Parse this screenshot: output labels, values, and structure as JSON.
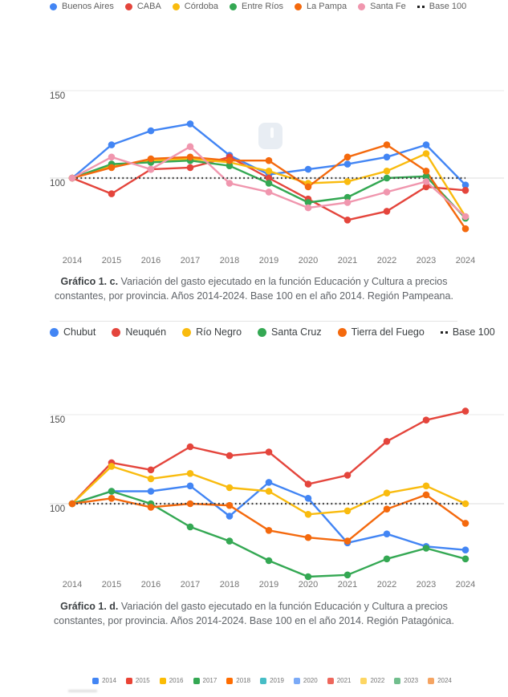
{
  "charts": [
    {
      "name": "pampeana",
      "legend": [
        {
          "label": "Buenos Aires",
          "color": "#4285F4"
        },
        {
          "label": "CABA",
          "color": "#E4453C"
        },
        {
          "label": "Córdoba",
          "color": "#F9BB0E"
        },
        {
          "label": "Entre Ríos",
          "color": "#34A853"
        },
        {
          "label": "La Pampa",
          "color": "#F4690D"
        },
        {
          "label": "Santa Fe",
          "color": "#F096AE"
        },
        {
          "label": "Base 100",
          "style": "dotted",
          "color": "#212121"
        }
      ],
      "caption_bold": "Gráfico 1. c.",
      "caption_text": "Variación del gasto ejecutado en la función Educación y Cultura a precios constantes, por provincia. Años 2014-2024. Base 100 en el año 2014. Región Pampeana."
    },
    {
      "name": "patagonica",
      "legend": [
        {
          "label": "Chubut",
          "color": "#4285F4"
        },
        {
          "label": "Neuquén",
          "color": "#E4453C"
        },
        {
          "label": "Río Negro",
          "color": "#F9BB0E"
        },
        {
          "label": "Santa Cruz",
          "color": "#34A853"
        },
        {
          "label": "Tierra del Fuego",
          "color": "#F4690D"
        },
        {
          "label": "Base 100",
          "style": "dotted",
          "color": "#212121"
        }
      ],
      "caption_bold": "Gráfico 1. d.",
      "caption_text": "Variación del gasto ejecutado en la función Educación y Cultura a precios constantes, por provincia. Años 2014-2024. Base 100 en el año 2014. Región Patagónica."
    }
  ],
  "chart_data": [
    {
      "type": "line",
      "title": "Gráfico 1. c. Variación del gasto ejecutado en la función Educación y Cultura a precios constantes, por provincia. Años 2014-2024. Base 100 en el año 2014. Región Pampeana.",
      "categories": [
        "2014",
        "2015",
        "2016",
        "2017",
        "2018",
        "2019",
        "2020",
        "2021",
        "2022",
        "2023",
        "2024"
      ],
      "series": [
        {
          "name": "Buenos Aires",
          "color": "#4285F4",
          "values": [
            100,
            119,
            127,
            131,
            113,
            102,
            105,
            108,
            112,
            119,
            96
          ]
        },
        {
          "name": "CABA",
          "color": "#E4453C",
          "values": [
            100,
            91,
            105,
            106,
            112,
            100,
            88,
            76,
            81,
            95,
            93
          ]
        },
        {
          "name": "Córdoba",
          "color": "#F9BB0E",
          "values": [
            100,
            107,
            110,
            111,
            109,
            104,
            97,
            98,
            104,
            114,
            78
          ]
        },
        {
          "name": "Entre Ríos",
          "color": "#34A853",
          "values": [
            100,
            108,
            109,
            110,
            107,
            97,
            86,
            89,
            100,
            101,
            77
          ]
        },
        {
          "name": "La Pampa",
          "color": "#F4690D",
          "values": [
            100,
            106,
            111,
            112,
            110,
            110,
            95,
            112,
            119,
            104,
            71
          ]
        },
        {
          "name": "Santa Fe",
          "color": "#F096AE",
          "values": [
            100,
            112,
            105,
            118,
            97,
            92,
            83,
            86,
            92,
            98,
            78
          ]
        }
      ],
      "base_line": {
        "label": "Base 100",
        "value": 100,
        "style": "dotted",
        "color": "#3d3d3d"
      },
      "y_ticks": [
        150,
        100
      ],
      "ylim": [
        58,
        153
      ],
      "grid": "horizontal-only",
      "legend_position": "top"
    },
    {
      "type": "line",
      "title": "Gráfico 1. d. Variación del gasto ejecutado en la función Educación y Cultura a precios constantes, por provincia. Años 2014-2024. Base 100 en el año 2014. Región Patagónica.",
      "categories": [
        "2014",
        "2015",
        "2016",
        "2017",
        "2018",
        "2019",
        "2020",
        "2021",
        "2022",
        "2023",
        "2024"
      ],
      "series": [
        {
          "name": "Chubut",
          "color": "#4285F4",
          "values": [
            100,
            107,
            107,
            110,
            93,
            112,
            103,
            78,
            83,
            76,
            74
          ]
        },
        {
          "name": "Neuquén",
          "color": "#E4453C",
          "values": [
            100,
            123,
            119,
            132,
            127,
            129,
            111,
            116,
            135,
            147,
            152
          ]
        },
        {
          "name": "Río Negro",
          "color": "#F9BB0E",
          "values": [
            100,
            121,
            114,
            117,
            109,
            107,
            94,
            96,
            106,
            110,
            100
          ]
        },
        {
          "name": "Santa Cruz",
          "color": "#34A853",
          "values": [
            100,
            107,
            100,
            87,
            79,
            68,
            59,
            60,
            69,
            75,
            69
          ]
        },
        {
          "name": "Tierra del Fuego",
          "color": "#F4690D",
          "values": [
            100,
            103,
            98,
            100,
            99,
            85,
            81,
            79,
            97,
            105,
            89
          ]
        }
      ],
      "base_line": {
        "label": "Base 100",
        "value": 100,
        "style": "dotted",
        "color": "#3d3d3d"
      },
      "y_ticks": [
        150,
        100
      ],
      "ylim": [
        48,
        156
      ],
      "grid": "horizontal-only",
      "legend_position": "top"
    }
  ],
  "year_legend": [
    {
      "label": "2014",
      "color": "#4285F4"
    },
    {
      "label": "2015",
      "color": "#EA4335"
    },
    {
      "label": "2016",
      "color": "#FBBC04"
    },
    {
      "label": "2017",
      "color": "#34A853"
    },
    {
      "label": "2018",
      "color": "#FF6D01"
    },
    {
      "label": "2019",
      "color": "#46BDC6"
    },
    {
      "label": "2020",
      "color": "#7BAAF7"
    },
    {
      "label": "2021",
      "color": "#EE675C"
    },
    {
      "label": "2022",
      "color": "#FDD663"
    },
    {
      "label": "2023",
      "color": "#71BE8D"
    },
    {
      "label": "2024",
      "color": "#F5A462"
    }
  ]
}
